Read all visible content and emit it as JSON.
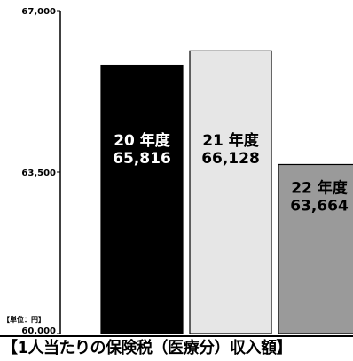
{
  "chart_data": {
    "type": "bar",
    "title": "【1人当たりの保険税（医療分）収入額】",
    "unit_label": "【単位：円】",
    "categories": [
      "20 年度",
      "21 年度",
      "22 年度"
    ],
    "values": [
      65816,
      66128,
      63664
    ],
    "value_labels": [
      "65,816",
      "66,128",
      "63,664"
    ],
    "bar_colors": [
      "#000000",
      "#e6e6e6",
      "#9a9a9a"
    ],
    "bar_text_colors": [
      "#ffffff",
      "#000000",
      "#000000"
    ],
    "ylim": [
      60000,
      67000
    ],
    "yticks": [
      60000,
      63500,
      67000
    ],
    "ytick_labels": [
      "60,000",
      "63,500",
      "67,000"
    ],
    "grid": false,
    "legend": "none"
  }
}
